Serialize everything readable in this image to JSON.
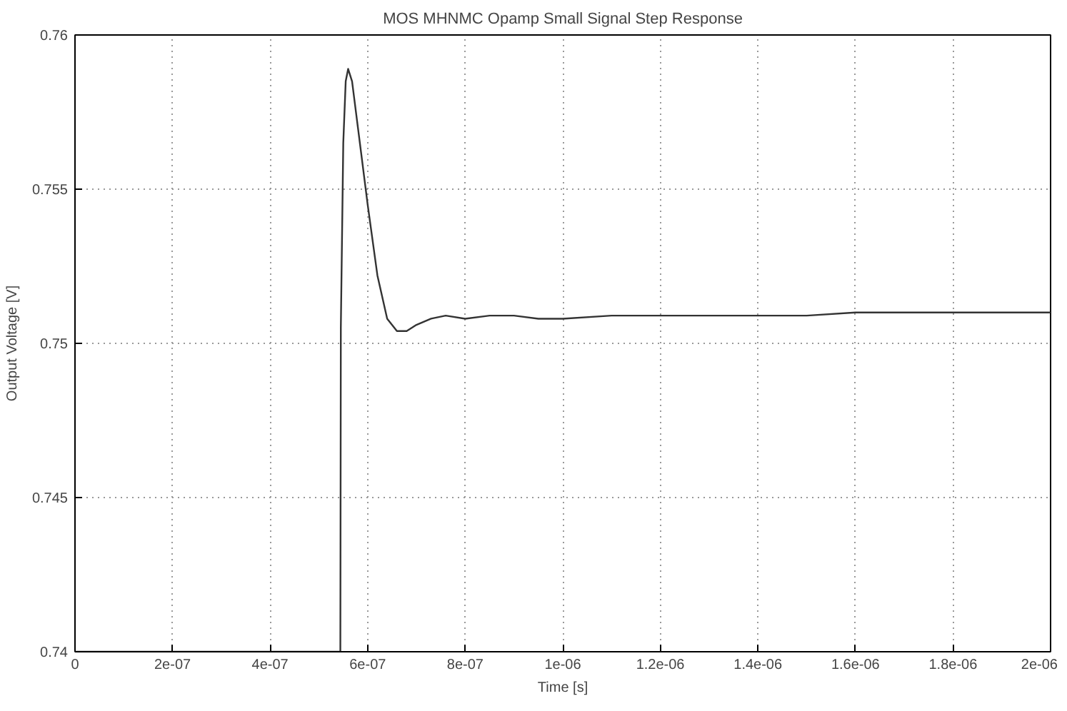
{
  "chart_data": {
    "type": "line",
    "title": "MOS MHNMC Opamp Small Signal Step Response",
    "xlabel": "Time [s]",
    "ylabel": "Output Voltage [V]",
    "x": [
      0,
      5.44e-07,
      5.45e-07,
      5.5e-07,
      5.55e-07,
      5.6e-07,
      5.68e-07,
      5.8e-07,
      6e-07,
      6.2e-07,
      6.4e-07,
      6.6e-07,
      6.8e-07,
      7e-07,
      7.3e-07,
      7.6e-07,
      8e-07,
      8.5e-07,
      9e-07,
      9.5e-07,
      1e-06,
      1.1e-06,
      1.2e-06,
      1.3e-06,
      1.4e-06,
      1.5e-06,
      1.6e-06,
      1.7e-06,
      1.8e-06,
      1.9e-06,
      2e-06
    ],
    "values": [
      0.74,
      0.74,
      0.7505,
      0.7565,
      0.7585,
      0.7589,
      0.7585,
      0.757,
      0.7545,
      0.7522,
      0.7508,
      0.7504,
      0.7504,
      0.7506,
      0.7508,
      0.7509,
      0.7508,
      0.7509,
      0.7509,
      0.7508,
      0.7508,
      0.7509,
      0.7509,
      0.7509,
      0.7509,
      0.7509,
      0.751,
      0.751,
      0.751,
      0.751,
      0.751
    ],
    "color": "#333333",
    "xlim": [
      0,
      2e-06
    ],
    "ylim": [
      0.74,
      0.76
    ],
    "xticks": [
      0,
      {
        "value": 2e-07,
        "label": "2e-07"
      },
      {
        "value": 4e-07,
        "label": "4e-07"
      },
      {
        "value": 6e-07,
        "label": "6e-07"
      },
      {
        "value": 8e-07,
        "label": "8e-07"
      },
      {
        "value": 1e-06,
        "label": "1e-06"
      },
      {
        "value": 1.2e-06,
        "label": "1.2e-06"
      },
      {
        "value": 1.4e-06,
        "label": "1.4e-06"
      },
      {
        "value": 1.6e-06,
        "label": "1.6e-06"
      },
      {
        "value": 1.8e-06,
        "label": "1.8e-06"
      },
      {
        "value": 2e-06,
        "label": "2e-06"
      }
    ],
    "yticks": [
      {
        "value": 0.74,
        "label": "0.74"
      },
      {
        "value": 0.745,
        "label": "0.745"
      },
      {
        "value": 0.75,
        "label": "0.75"
      },
      {
        "value": 0.755,
        "label": "0.755"
      },
      {
        "value": 0.76,
        "label": "0.76"
      }
    ],
    "grid": true,
    "line_style": "solid"
  }
}
